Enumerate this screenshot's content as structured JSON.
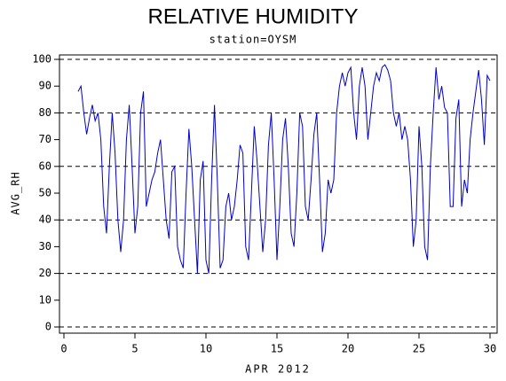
{
  "chart_data": {
    "type": "line",
    "title": "RELATIVE HUMIDITY",
    "subtitle": "station=OYSM",
    "x_label": "APR 2012",
    "y_label": "AVG_RH",
    "x": [
      1,
      1.2,
      1.4,
      1.6,
      1.8,
      2,
      2.2,
      2.4,
      2.6,
      2.8,
      3,
      3.2,
      3.4,
      3.6,
      3.8,
      4,
      4.2,
      4.4,
      4.6,
      4.8,
      5,
      5.2,
      5.4,
      5.6,
      5.8,
      6,
      6.2,
      6.4,
      6.6,
      6.8,
      7,
      7.2,
      7.4,
      7.6,
      7.8,
      8,
      8.2,
      8.4,
      8.6,
      8.8,
      9,
      9.2,
      9.4,
      9.6,
      9.8,
      10,
      10.2,
      10.4,
      10.6,
      10.8,
      11,
      11.2,
      11.4,
      11.6,
      11.8,
      12,
      12.2,
      12.4,
      12.6,
      12.8,
      13,
      13.2,
      13.4,
      13.6,
      13.8,
      14,
      14.2,
      14.4,
      14.6,
      14.8,
      15,
      15.2,
      15.4,
      15.6,
      15.8,
      16,
      16.2,
      16.4,
      16.6,
      16.8,
      17,
      17.2,
      17.4,
      17.6,
      17.8,
      18,
      18.2,
      18.4,
      18.6,
      18.8,
      19,
      19.2,
      19.4,
      19.6,
      19.8,
      20,
      20.2,
      20.4,
      20.6,
      20.8,
      21,
      21.2,
      21.4,
      21.6,
      21.8,
      22,
      22.2,
      22.4,
      22.6,
      22.8,
      23,
      23.2,
      23.4,
      23.6,
      23.8,
      24,
      24.2,
      24.4,
      24.6,
      24.8,
      25,
      25.2,
      25.4,
      25.6,
      25.8,
      26,
      26.2,
      26.4,
      26.6,
      26.8,
      27,
      27.2,
      27.4,
      27.6,
      27.8,
      28,
      28.2,
      28.4,
      28.6,
      28.8,
      29,
      29.2,
      29.4,
      29.6,
      29.8,
      30
    ],
    "series": [
      {
        "name": "AVG_RH",
        "color": "#0000cc",
        "values": [
          88,
          90,
          80,
          72,
          78,
          83,
          77,
          80,
          70,
          45,
          35,
          60,
          80,
          65,
          40,
          28,
          40,
          70,
          83,
          60,
          35,
          45,
          80,
          88,
          45,
          50,
          55,
          58,
          65,
          70,
          55,
          40,
          33,
          58,
          60,
          30,
          25,
          22,
          50,
          74,
          60,
          40,
          20,
          55,
          62,
          25,
          20,
          55,
          83,
          55,
          22,
          25,
          45,
          50,
          40,
          45,
          55,
          68,
          65,
          30,
          25,
          50,
          75,
          62,
          45,
          28,
          40,
          68,
          80,
          55,
          25,
          45,
          70,
          78,
          60,
          35,
          30,
          50,
          80,
          75,
          45,
          40,
          55,
          72,
          80,
          55,
          28,
          35,
          55,
          50,
          55,
          80,
          90,
          95,
          90,
          95,
          97,
          80,
          70,
          90,
          97,
          90,
          70,
          80,
          90,
          95,
          92,
          97,
          98,
          96,
          92,
          80,
          75,
          80,
          70,
          75,
          70,
          55,
          30,
          40,
          75,
          60,
          30,
          25,
          60,
          80,
          97,
          85,
          90,
          82,
          80,
          45,
          45,
          78,
          85,
          45,
          55,
          50,
          70,
          80,
          88,
          96,
          85,
          68,
          94,
          92
        ]
      }
    ],
    "xlim": [
      0,
      30
    ],
    "xticks": [
      0,
      5,
      10,
      15,
      20,
      25,
      30
    ],
    "ylim": [
      0,
      100
    ],
    "yticks": [
      0,
      10,
      20,
      30,
      40,
      50,
      60,
      70,
      80,
      90,
      100
    ],
    "grid_lines": [
      0,
      20,
      40,
      60,
      80,
      100
    ]
  }
}
